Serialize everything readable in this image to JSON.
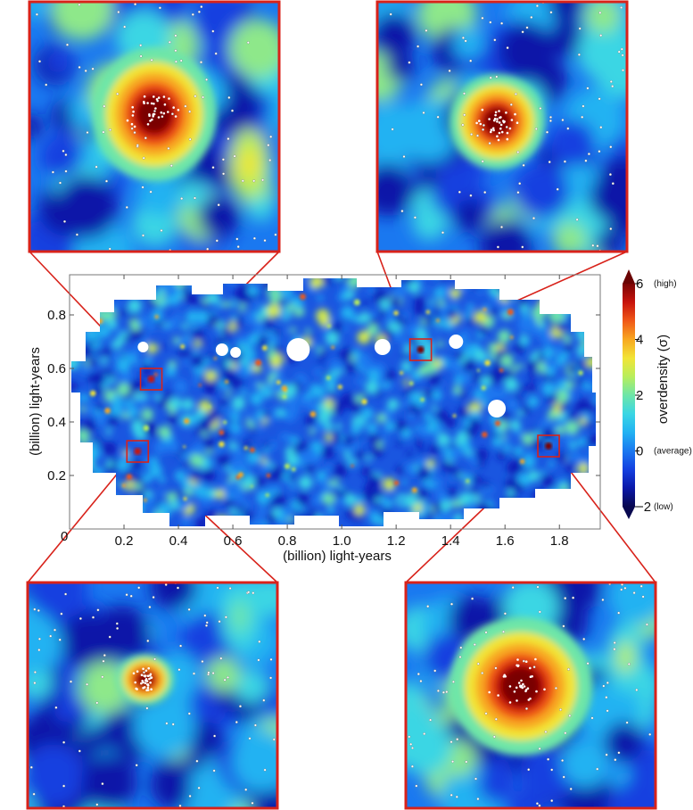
{
  "chart_data": {
    "type": "heatmap",
    "title": "",
    "xlabel": "(billion) light-years",
    "ylabel": "(billion) light-years",
    "xlim": [
      0,
      1.95
    ],
    "ylim": [
      0,
      0.95
    ],
    "x_ticks": [
      "0.2",
      "0.4",
      "0.6",
      "0.8",
      "1.0",
      "1.2",
      "1.4",
      "1.6",
      "1.8"
    ],
    "y_ticks": [
      "0.2",
      "0.4",
      "0.6",
      "0.8"
    ],
    "origin_label": "0",
    "colorbar": {
      "label": "overdensity (σ)",
      "range": [
        -2,
        6
      ],
      "ticks": [
        {
          "value": 6,
          "label": "6",
          "note": "(high)"
        },
        {
          "value": 4,
          "label": "4",
          "note": ""
        },
        {
          "value": 2,
          "label": "2",
          "note": ""
        },
        {
          "value": 0,
          "label": "0",
          "note": "(average)"
        },
        {
          "value": -2,
          "label": "−2",
          "note": "(low)"
        }
      ],
      "colors": [
        "#08084f",
        "#0a18a8",
        "#1440e0",
        "#1a78f0",
        "#22b2f2",
        "#3ad6e4",
        "#6ee6a8",
        "#b8ee5c",
        "#f2e436",
        "#f8a820",
        "#f05818",
        "#c8140c",
        "#7a0404"
      ]
    },
    "highlighted_regions": [
      {
        "name": "top-left inset",
        "x": 0.3,
        "y": 0.56,
        "peak_sigma": 5.5
      },
      {
        "name": "top-right inset",
        "x": 1.29,
        "y": 0.67,
        "peak_sigma": 5.8
      },
      {
        "name": "bottom-left inset",
        "x": 0.25,
        "y": 0.29,
        "peak_sigma": 5.0
      },
      {
        "name": "bottom-right inset",
        "x": 1.76,
        "y": 0.31,
        "peak_sigma": 6.0
      }
    ],
    "masked_holes": [
      {
        "x": 0.84,
        "y": 0.67
      },
      {
        "x": 0.56,
        "y": 0.67
      },
      {
        "x": 1.15,
        "y": 0.68
      },
      {
        "x": 1.57,
        "y": 0.45
      },
      {
        "x": 0.27,
        "y": 0.68
      },
      {
        "x": 1.42,
        "y": 0.7
      },
      {
        "x": 0.61,
        "y": 0.66
      }
    ],
    "grid": false,
    "legend": "colorbar-right"
  },
  "colors": {
    "frame": "#d8221a",
    "axis": "#111111"
  }
}
